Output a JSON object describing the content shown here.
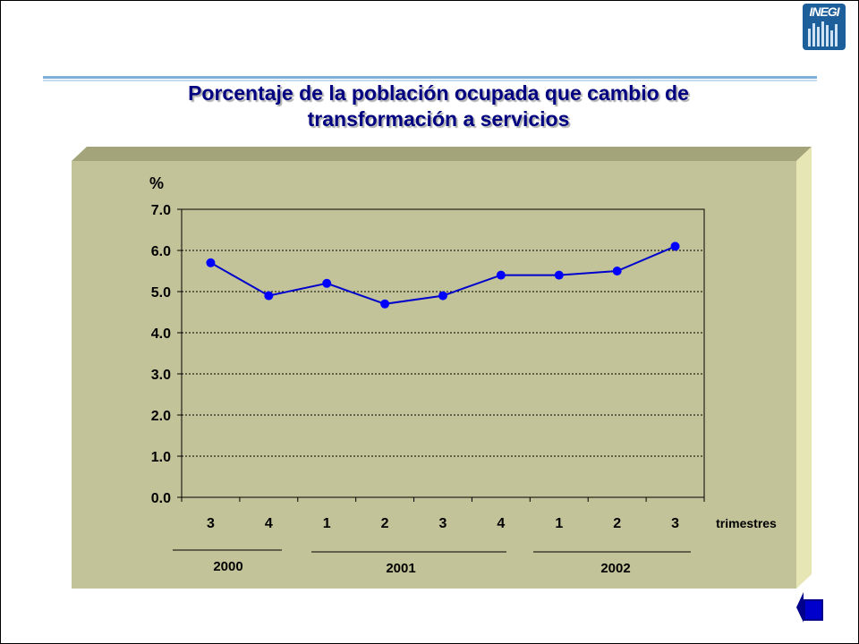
{
  "title_line1": "Porcentaje de la población ocupada que cambio de",
  "title_line2": "transformación a servicios",
  "logo_text": "INEGI",
  "chart_data": {
    "type": "line",
    "ylabel": "%",
    "xlabel": "trimestres",
    "ylim": [
      0,
      7
    ],
    "yticks": [
      "0.0",
      "1.0",
      "2.0",
      "3.0",
      "4.0",
      "5.0",
      "6.0",
      "7.0"
    ],
    "categories": [
      "3",
      "4",
      "1",
      "2",
      "3",
      "4",
      "1",
      "2",
      "3"
    ],
    "years": [
      "2000",
      "2001",
      "2002"
    ],
    "series": [
      {
        "values": [
          5.7,
          4.9,
          5.2,
          4.7,
          4.9,
          5.4,
          5.4,
          5.5,
          6.1
        ]
      }
    ],
    "grid": true,
    "colors": {
      "line": "#0000cc",
      "marker": "#0000ff",
      "plot_bg": "#c3c399",
      "side": "#e6e6b4"
    }
  }
}
